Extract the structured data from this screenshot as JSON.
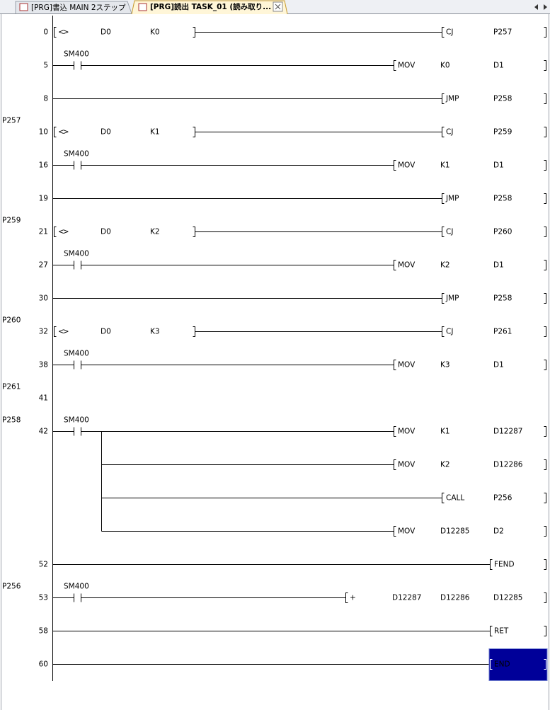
{
  "tabs": [
    "[PRG]書込 MAIN 2ステップ",
    "[PRG]読出 TASK_01 (読み取り..."
  ],
  "rungs": [
    {
      "step": 0,
      "compare": [
        "<>",
        "D0",
        "K0"
      ],
      "outputs": [
        [
          "CJ",
          "P257"
        ]
      ]
    },
    {
      "step": 5,
      "contact": "SM400",
      "outputs": [
        [
          "MOV",
          "K0",
          "D1"
        ]
      ]
    },
    {
      "step": 8,
      "outputs": [
        [
          "JMP",
          "P258"
        ]
      ]
    },
    {
      "label": "P257",
      "step": 10,
      "compare": [
        "<>",
        "D0",
        "K1"
      ],
      "outputs": [
        [
          "CJ",
          "P259"
        ]
      ]
    },
    {
      "step": 16,
      "contact": "SM400",
      "outputs": [
        [
          "MOV",
          "K1",
          "D1"
        ]
      ]
    },
    {
      "step": 19,
      "outputs": [
        [
          "JMP",
          "P258"
        ]
      ]
    },
    {
      "label": "P259",
      "step": 21,
      "compare": [
        "<>",
        "D0",
        "K2"
      ],
      "outputs": [
        [
          "CJ",
          "P260"
        ]
      ]
    },
    {
      "step": 27,
      "contact": "SM400",
      "outputs": [
        [
          "MOV",
          "K2",
          "D1"
        ]
      ]
    },
    {
      "step": 30,
      "outputs": [
        [
          "JMP",
          "P258"
        ]
      ]
    },
    {
      "label": "P260",
      "step": 32,
      "compare": [
        "<>",
        "D0",
        "K3"
      ],
      "outputs": [
        [
          "CJ",
          "P261"
        ]
      ]
    },
    {
      "step": 38,
      "contact": "SM400",
      "outputs": [
        [
          "MOV",
          "K3",
          "D1"
        ]
      ]
    },
    {
      "label": "P261",
      "step": 41,
      "outputs": []
    },
    {
      "label": "P258",
      "step": 42,
      "contact": "SM400",
      "outputs": [
        [
          "MOV",
          "K1",
          "D12287"
        ],
        [
          "MOV",
          "K2",
          "D12286"
        ],
        [
          "CALL",
          "P256"
        ],
        [
          "MOV",
          "D12285",
          "D2"
        ]
      ]
    },
    {
      "step": 52,
      "outputs": [
        [
          "FEND"
        ]
      ]
    },
    {
      "label": "P256",
      "step": 53,
      "contact": "SM400",
      "outputs": [
        [
          "+",
          "D12287",
          "D12286",
          "D12285"
        ]
      ]
    },
    {
      "step": 58,
      "outputs": [
        [
          "RET"
        ]
      ]
    },
    {
      "step": 60,
      "outputs": [
        [
          "END"
        ]
      ]
    }
  ]
}
